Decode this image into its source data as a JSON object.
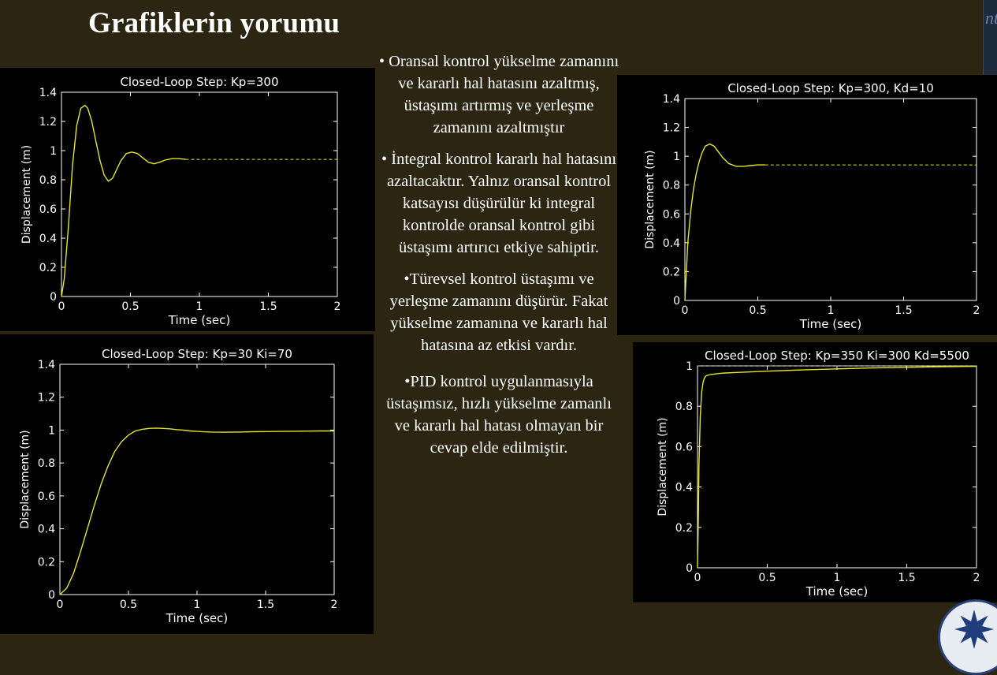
{
  "slide": {
    "title": "Grafiklerin yorumu",
    "bullets": [
      "• Oransal kontrol yükselme zamanını ve kararlı hal hatasını azaltmış, üstaşımı artırmış ve yerleşme zamanını azaltmıştır",
      "• İntegral kontrol kararlı hal hatasını azaltacaktır. Yalnız oransal kontrol katsayısı düşürülür ki integral kontrolde oransal kontrol gibi üstaşımı artırıcı etkiye sahiptir.",
      "•Türevsel kontrol üstaşımı ve yerleşme zamanını düşürür. Fakat yükselme zamanına ve kararlı hal hatasına az etkisi vardır.",
      "•PID kontrol uygulanmasıyla üstaşımsız, hızlı yükselme zamanlı ve kararlı hal hatası olmayan bir cevap elde edilmiştir."
    ],
    "side_text": "ntr",
    "colors": {
      "background": "#2c2512",
      "plot_bg": "#000000",
      "trace": "#e6e61e",
      "axes": "#ffffff"
    }
  },
  "chart_data": [
    {
      "type": "line",
      "title": "Closed-Loop Step: Kp=300",
      "xlabel": "Time (sec)",
      "ylabel": "Displacement (m)",
      "xlim": [
        0,
        2
      ],
      "ylim": [
        0,
        1.4
      ],
      "xticks": [
        0,
        0.5,
        1,
        1.5,
        2
      ],
      "xtick_labels": [
        "0",
        "0.5",
        "1",
        "1.5",
        "2"
      ],
      "yticks": [
        0,
        0.2,
        0.4,
        0.6,
        0.8,
        1,
        1.2,
        1.4
      ],
      "ytick_labels": [
        "0",
        "0.2",
        "0.4",
        "0.6",
        "0.8",
        "1",
        "1.2",
        "1.4"
      ],
      "reference": {
        "y": 0.94,
        "from_x": 0.9,
        "to_x": 2
      },
      "grid": false,
      "x": [
        0,
        0.02,
        0.05,
        0.08,
        0.11,
        0.14,
        0.17,
        0.19,
        0.22,
        0.25,
        0.28,
        0.31,
        0.34,
        0.37,
        0.4,
        0.43,
        0.47,
        0.51,
        0.55,
        0.59,
        0.63,
        0.67,
        0.71,
        0.75,
        0.8,
        0.85,
        0.9
      ],
      "y": [
        0,
        0.12,
        0.48,
        0.9,
        1.17,
        1.29,
        1.31,
        1.29,
        1.2,
        1.06,
        0.93,
        0.83,
        0.79,
        0.81,
        0.87,
        0.93,
        0.98,
        0.99,
        0.98,
        0.95,
        0.92,
        0.91,
        0.92,
        0.935,
        0.945,
        0.945,
        0.94
      ]
    },
    {
      "type": "line",
      "title": "Closed-Loop Step: Kp=30 Ki=70",
      "xlabel": "Time (sec)",
      "ylabel": "Displacement (m)",
      "xlim": [
        0,
        2
      ],
      "ylim": [
        0,
        1.4
      ],
      "xticks": [
        0,
        0.5,
        1,
        1.5,
        2
      ],
      "xtick_labels": [
        "0",
        "0.5",
        "1",
        "1.5",
        "2"
      ],
      "yticks": [
        0,
        0.2,
        0.4,
        0.6,
        0.8,
        1,
        1.2,
        1.4
      ],
      "ytick_labels": [
        "0",
        "0.2",
        "0.4",
        "0.6",
        "0.8",
        "1",
        "1.2",
        "1.4"
      ],
      "grid": false,
      "x": [
        0,
        0.05,
        0.1,
        0.15,
        0.2,
        0.25,
        0.3,
        0.35,
        0.4,
        0.45,
        0.5,
        0.55,
        0.6,
        0.65,
        0.7,
        0.75,
        0.8,
        0.85,
        0.9,
        0.95,
        1.0,
        1.1,
        1.2,
        1.3,
        1.4,
        1.5,
        1.6,
        1.7,
        1.8,
        1.9,
        2.0
      ],
      "y": [
        0,
        0.04,
        0.13,
        0.26,
        0.4,
        0.54,
        0.67,
        0.78,
        0.87,
        0.93,
        0.97,
        0.995,
        1.005,
        1.01,
        1.012,
        1.01,
        1.008,
        1.003,
        1.0,
        0.995,
        0.992,
        0.988,
        0.987,
        0.988,
        0.99,
        0.991,
        0.992,
        0.993,
        0.994,
        0.995,
        0.995
      ]
    },
    {
      "type": "line",
      "title": "Closed-Loop Step: Kp=300, Kd=10",
      "xlabel": "Time (sec)",
      "ylabel": "Displacement (m)",
      "xlim": [
        0,
        2
      ],
      "ylim": [
        0,
        1.4
      ],
      "xticks": [
        0,
        0.5,
        1,
        1.5,
        2
      ],
      "xtick_labels": [
        "0",
        "0.5",
        "1",
        "1.5",
        "2"
      ],
      "yticks": [
        0,
        0.2,
        0.4,
        0.6,
        0.8,
        1,
        1.2,
        1.4
      ],
      "ytick_labels": [
        "0",
        "0.2",
        "0.4",
        "0.6",
        "0.8",
        "1",
        "1.2",
        "1.4"
      ],
      "reference": {
        "y": 0.94,
        "from_x": 0.55,
        "to_x": 2
      },
      "grid": false,
      "x": [
        0,
        0.02,
        0.04,
        0.06,
        0.08,
        0.1,
        0.12,
        0.14,
        0.17,
        0.2,
        0.23,
        0.26,
        0.3,
        0.35,
        0.4,
        0.45,
        0.5,
        0.55
      ],
      "y": [
        0,
        0.4,
        0.62,
        0.78,
        0.89,
        0.97,
        1.03,
        1.07,
        1.085,
        1.07,
        1.03,
        0.99,
        0.95,
        0.93,
        0.93,
        0.935,
        0.94,
        0.94
      ]
    },
    {
      "type": "line",
      "title": "Closed-Loop Step: Kp=350 Ki=300 Kd=5500",
      "xlabel": "Time (sec)",
      "ylabel": "Displacement (m)",
      "xlim": [
        0,
        2
      ],
      "ylim": [
        0,
        1
      ],
      "xticks": [
        0,
        0.5,
        1,
        1.5,
        2
      ],
      "xtick_labels": [
        "0",
        "0.5",
        "1",
        "1.5",
        "2"
      ],
      "yticks": [
        0,
        0.2,
        0.4,
        0.6,
        0.8,
        1
      ],
      "ytick_labels": [
        "0",
        "0.2",
        "0.4",
        "0.6",
        "0.8",
        "1"
      ],
      "reference": {
        "y": 1,
        "from_x": 0,
        "to_x": 2
      },
      "grid": false,
      "x": [
        0,
        0.005,
        0.01,
        0.02,
        0.03,
        0.04,
        0.05,
        0.06,
        0.08,
        0.1,
        0.15,
        0.2,
        0.3,
        0.5,
        0.75,
        1.0,
        1.25,
        1.5,
        1.75,
        2.0
      ],
      "y": [
        0,
        0.2,
        0.5,
        0.75,
        0.87,
        0.92,
        0.94,
        0.95,
        0.955,
        0.958,
        0.962,
        0.965,
        0.968,
        0.974,
        0.98,
        0.985,
        0.99,
        0.993,
        0.996,
        0.998
      ]
    }
  ]
}
